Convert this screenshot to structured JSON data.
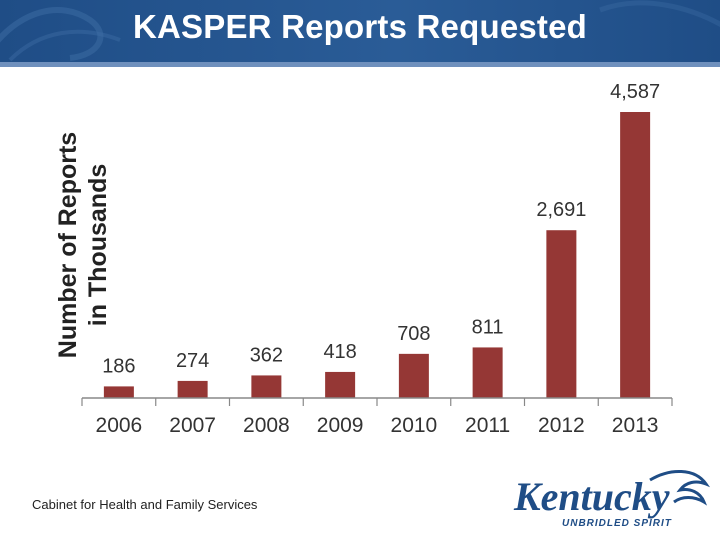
{
  "slide": {
    "title": "KASPER Reports Requested",
    "footer": "Cabinet for Health and Family Services",
    "logo_text": "Kentucky",
    "logo_tagline": "UNBRIDLED SPIRIT"
  },
  "colors": {
    "header": "#2a5c97",
    "bar": "#953735",
    "axis": "#888888"
  },
  "chart_data": {
    "type": "bar",
    "title": "",
    "xlabel": "",
    "ylabel": "Number of Reports in Thousands",
    "ylabel_lines": [
      "Number of Reports",
      "in Thousands"
    ],
    "categories": [
      "2006",
      "2007",
      "2008",
      "2009",
      "2010",
      "2011",
      "2012",
      "2013"
    ],
    "values": [
      186,
      274,
      362,
      418,
      708,
      811,
      2691,
      4587
    ],
    "labels": [
      "186",
      "274",
      "362",
      "418",
      "708",
      "811",
      "2,691",
      "4,587"
    ],
    "ylim": [
      0,
      5000
    ],
    "grid": false,
    "legend": "none"
  }
}
